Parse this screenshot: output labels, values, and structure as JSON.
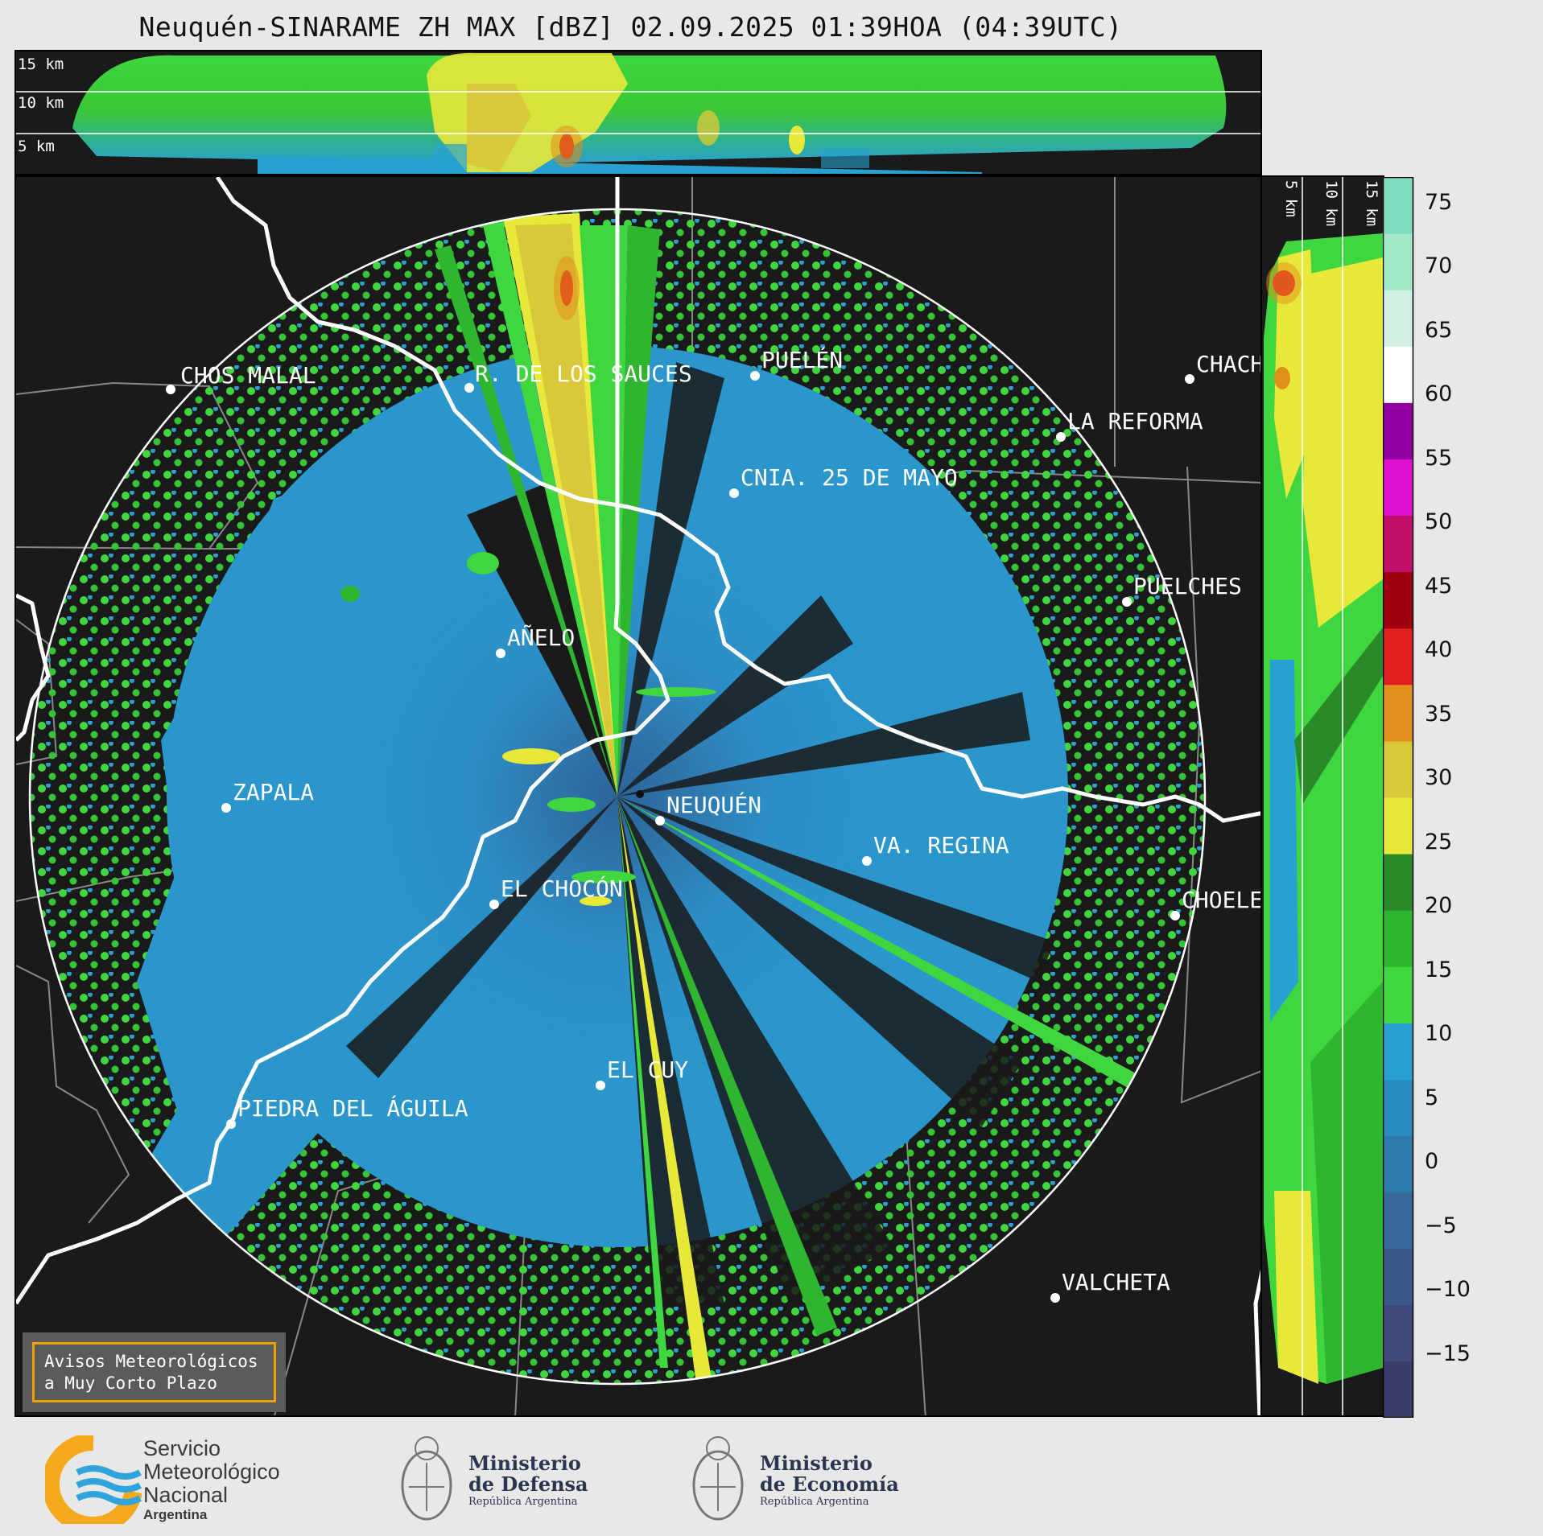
{
  "header": {
    "title": "Neuquén-SINARAME ZH MAX [dBZ] 02.09.2025 01:39HOA (04:39UTC)"
  },
  "cross_section_top": {
    "height_labels": [
      "15 km",
      "10 km",
      "5 km"
    ]
  },
  "cross_section_side": {
    "height_labels": [
      "5 km",
      "10 km",
      "15 km"
    ]
  },
  "localities": [
    {
      "name": "CHOS MALAL"
    },
    {
      "name": "R. DE LOS SAUCES"
    },
    {
      "name": "PUELÉN"
    },
    {
      "name": "CHACH"
    },
    {
      "name": "LA REFORMA"
    },
    {
      "name": "CNIA. 25 DE MAYO"
    },
    {
      "name": "PUELCHES"
    },
    {
      "name": "AÑELO"
    },
    {
      "name": "ZAPALA"
    },
    {
      "name": "NEUQUÉN"
    },
    {
      "name": "VA. REGINA"
    },
    {
      "name": "EL CHOCÓN"
    },
    {
      "name": "CHOELE"
    },
    {
      "name": "EL CUY"
    },
    {
      "name": "PIEDRA DEL ÁGUILA"
    },
    {
      "name": "VALCHETA"
    }
  ],
  "colorbar": {
    "unit": "dBZ",
    "ticks": [
      "75",
      "70",
      "65",
      "60",
      "55",
      "50",
      "45",
      "40",
      "35",
      "30",
      "25",
      "20",
      "15",
      "10",
      "5",
      "0",
      "−5",
      "−10",
      "−15"
    ],
    "range": [
      -20,
      77
    ],
    "colors": [
      "#3d3d6b",
      "#3f4a7a",
      "#3b5a8a",
      "#376a9a",
      "#2f7aac",
      "#2a8dc0",
      "#27a2d0",
      "#3fd63f",
      "#2fb52f",
      "#2a8a2a",
      "#e8e83a",
      "#d8c83a",
      "#e0901a",
      "#e02020",
      "#a00010",
      "#c0106a",
      "#e010d0",
      "#9000a0",
      "#ffffff",
      "#d0f0e0",
      "#a0e8c8",
      "#80dcc0"
    ]
  },
  "warning_box": {
    "line1": "Avisos Meteorológicos",
    "line2": "a Muy Corto Plazo"
  },
  "logos": {
    "smn": {
      "line1": "Servicio",
      "line2": "Meteorológico",
      "line3": "Nacional",
      "line4": "Argentina"
    },
    "defensa": {
      "line1": "Ministerio",
      "line2": "de Defensa",
      "line3": "República Argentina"
    },
    "economia": {
      "line1": "Ministerio",
      "line2": "de Economía",
      "line3": "República Argentina"
    }
  }
}
